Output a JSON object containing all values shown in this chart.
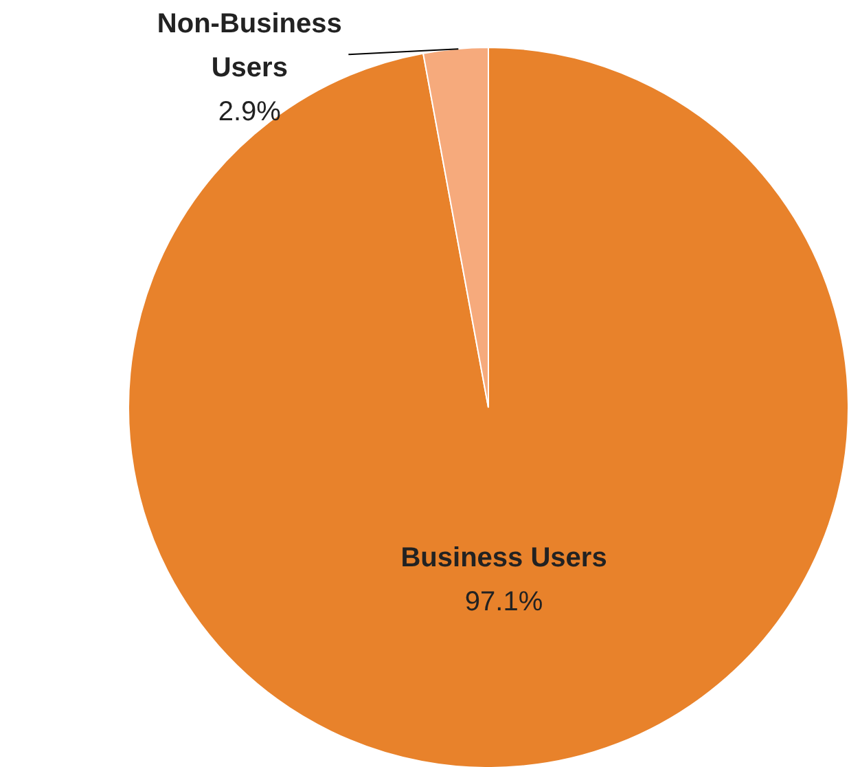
{
  "chart_data": {
    "type": "pie",
    "categories": [
      "Business Users",
      "Non-Business Users"
    ],
    "values": [
      97.1,
      2.9
    ],
    "colors": [
      "#e8822b",
      "#f6aa7c"
    ],
    "value_labels": [
      "97.1%",
      "2.9%"
    ]
  }
}
